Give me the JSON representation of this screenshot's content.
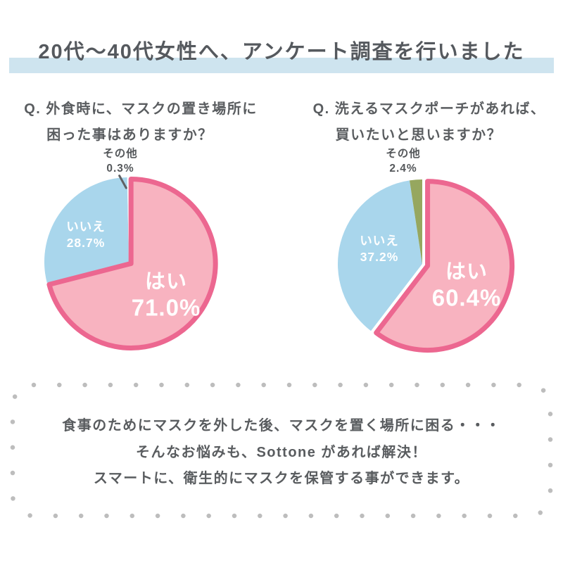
{
  "title": "20代～40代女性へ、アンケート調査を行いました",
  "chart_data": [
    {
      "type": "pie",
      "question_lines": [
        "Q. 外食時に、マスクの置き場所に",
        "困った事はありますか？"
      ],
      "labels": [
        "はい",
        "いいえ",
        "その他"
      ],
      "values": [
        71.0,
        28.7,
        0.3
      ],
      "value_labels": [
        "71.0%",
        "28.7%",
        "0.3%"
      ],
      "slice_colors": [
        "#f8b3c0",
        "#a9d6ec",
        "#ffffff"
      ],
      "start_angle_deg": 0,
      "direction": "clockwise",
      "legend": "none",
      "highlight": {
        "index": 0,
        "stroke": "#ec6790"
      },
      "callout": {
        "label": "その他",
        "value": "0.3%"
      }
    },
    {
      "type": "pie",
      "question_lines": [
        "Q. 洗えるマスクポーチがあれば、",
        "買いたいと思いますか？"
      ],
      "labels": [
        "はい",
        "いいえ",
        "その他"
      ],
      "values": [
        60.4,
        37.2,
        2.4
      ],
      "value_labels": [
        "60.4%",
        "37.2%",
        "2.4%"
      ],
      "slice_colors": [
        "#f8b3c0",
        "#a9d6ec",
        "#96a75f"
      ],
      "start_angle_deg": 0,
      "direction": "clockwise",
      "legend": "none",
      "highlight": {
        "index": 0,
        "stroke": "#ec6790"
      },
      "callout": {
        "label": "その他",
        "value": "2.4%"
      }
    }
  ],
  "footer": {
    "lines": [
      "食事のためにマスクを外した後、マスクを置く場所に困る・・・",
      "そんなお悩みも、Sottone があれば解決！",
      "スマートに、衛生的にマスクを保管する事ができます。"
    ]
  },
  "colors": {
    "title_band": "#cee4ef",
    "pink_fill": "#f8b3c0",
    "pink_stroke": "#ec6790",
    "blue_fill": "#a9d6ec",
    "green_fill": "#96a75f",
    "text_gray": "#56595c",
    "dot_gray": "#bdbdbd",
    "slice_text": "#ffffff"
  }
}
